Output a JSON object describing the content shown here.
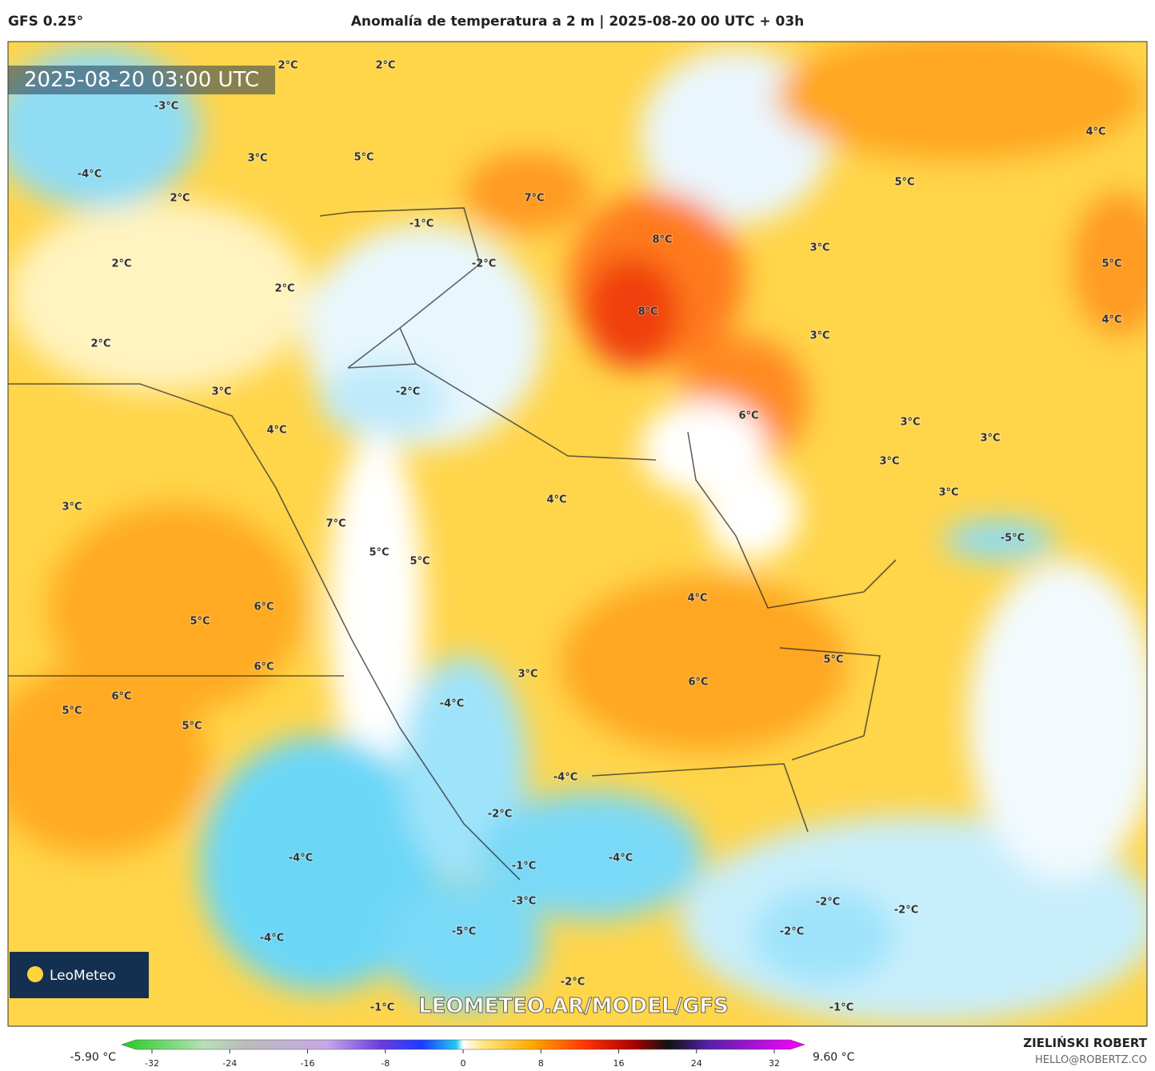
{
  "header": {
    "model": "GFS 0.25°",
    "title": "Anomalía de temperatura a 2 m | 2025-08-20 00 UTC + 03h"
  },
  "map": {
    "timestamp": "2025-08-20 03:00 UTC",
    "watermark": "LEOMETEO.AR/MODEL/GFS",
    "logo": "LeoMeteo",
    "labels": [
      "2°C",
      "2°C",
      "-3°C",
      "3°C",
      "5°C",
      "-4°C",
      "2°C",
      "7°C",
      "-1°C",
      "8°C",
      "2°C",
      "-2°C",
      "2°C",
      "8°C",
      "2°C",
      "3°C",
      "3°C",
      "5°C",
      "4°C",
      "5°C",
      "4°C",
      "-2°C",
      "3°C",
      "4°C",
      "6°C",
      "3°C",
      "3°C",
      "3°C",
      "3°C",
      "-5°C",
      "4°C",
      "3°C",
      "7°C",
      "5°C",
      "5°C",
      "4°C",
      "5°C",
      "6°C",
      "6°C",
      "5°C",
      "3°C",
      "6°C",
      "6°C",
      "5°C",
      "5°C",
      "-4°C",
      "-4°C",
      "-2°C",
      "-4°C",
      "-4°C",
      "-1°C",
      "-3°C",
      "-2°C",
      "-2°C",
      "-2°C",
      "-5°C",
      "-4°C",
      "-2°C",
      "-1°C",
      "-1°C"
    ]
  },
  "colorbar": {
    "min_label": "-5.90 °C",
    "max_label": "9.60 °C",
    "ticks": [
      -32,
      -24,
      -16,
      -8,
      0,
      8,
      16,
      24,
      32
    ]
  },
  "footer": {
    "author": "ZIELIŃSKI ROBERT",
    "email": "HELLO@ROBERTZ.CO"
  }
}
